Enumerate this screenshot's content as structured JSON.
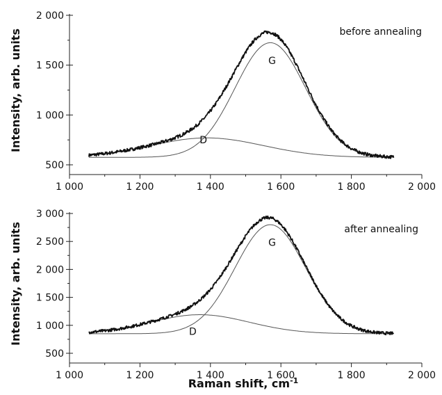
{
  "chart_data": [
    {
      "type": "line",
      "annotation": "before annealing",
      "ylabel": "Intensity, arb. units",
      "xlim": [
        1000,
        2000
      ],
      "ylim": [
        500,
        2000
      ],
      "x_ticks": [
        "1 000",
        "1 200",
        "1 400",
        "1 600",
        "1 800",
        "2 000"
      ],
      "y_ticks": [
        "500",
        "1 000",
        "1 500",
        "2 000"
      ],
      "baseline": 575,
      "x_range": [
        1055,
        1920
      ],
      "peaks": [
        {
          "name": "D",
          "center": 1390,
          "height": 195,
          "width": 160
        },
        {
          "name": "G",
          "center": 1570,
          "height": 1150,
          "width": 100
        }
      ],
      "peak_labels": [
        {
          "text": "D",
          "x": 1380,
          "y": 715
        },
        {
          "text": "G",
          "x": 1575,
          "y": 1510
        }
      ]
    },
    {
      "type": "line",
      "annotation": "after annealing",
      "ylabel": "Intensity, arb. units",
      "xlim": [
        1000,
        2000
      ],
      "ylim": [
        500,
        3000
      ],
      "x_ticks": [
        "1 000",
        "1 200",
        "1 400",
        "1 600",
        "1 800",
        "2 000"
      ],
      "y_ticks": [
        "500",
        "1 000",
        "1 500",
        "2 000",
        "2 500",
        "3 000"
      ],
      "baseline": 850,
      "x_range": [
        1055,
        1920
      ],
      "peaks": [
        {
          "name": "D",
          "center": 1370,
          "height": 340,
          "width": 140
        },
        {
          "name": "G",
          "center": 1570,
          "height": 1950,
          "width": 100
        }
      ],
      "peak_labels": [
        {
          "text": "D",
          "x": 1350,
          "y": 830
        },
        {
          "text": "G",
          "x": 1575,
          "y": 2420
        }
      ]
    }
  ],
  "xlabel": "Raman shift, cm",
  "xlabel_superscript": "-1"
}
